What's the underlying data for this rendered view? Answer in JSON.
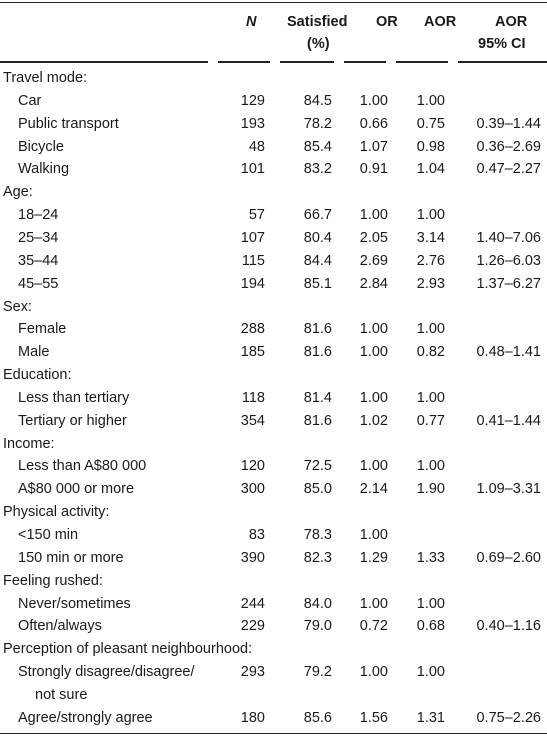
{
  "header": {
    "n": "N",
    "satisfied_line1": "Satisfied",
    "satisfied_line2": "(%)",
    "or": "OR",
    "aor": "AOR",
    "ci_line1": "AOR",
    "ci_line2": "95% CI"
  },
  "sections": [
    {
      "title": "Travel mode:",
      "rows": [
        {
          "label": "Car",
          "n": "129",
          "sat": "84.5",
          "or": "1.00",
          "aor": "1.00",
          "ci": ""
        },
        {
          "label": "Public transport",
          "n": "193",
          "sat": "78.2",
          "or": "0.66",
          "aor": "0.75",
          "ci": "0.39–1.44"
        },
        {
          "label": "Bicycle",
          "n": "48",
          "sat": "85.4",
          "or": "1.07",
          "aor": "0.98",
          "ci": "0.36–2.69"
        },
        {
          "label": "Walking",
          "n": "101",
          "sat": "83.2",
          "or": "0.91",
          "aor": "1.04",
          "ci": "0.47–2.27"
        }
      ]
    },
    {
      "title": "Age:",
      "rows": [
        {
          "label": "18–24",
          "n": "57",
          "sat": "66.7",
          "or": "1.00",
          "aor": "1.00",
          "ci": ""
        },
        {
          "label": "25–34",
          "n": "107",
          "sat": "80.4",
          "or": "2.05",
          "aor": "3.14",
          "ci": "1.40–7.06"
        },
        {
          "label": "35–44",
          "n": "115",
          "sat": "84.4",
          "or": "2.69",
          "aor": "2.76",
          "ci": "1.26–6.03"
        },
        {
          "label": "45–55",
          "n": "194",
          "sat": "85.1",
          "or": "2.84",
          "aor": "2.93",
          "ci": "1.37–6.27"
        }
      ]
    },
    {
      "title": "Sex:",
      "rows": [
        {
          "label": "Female",
          "n": "288",
          "sat": "81.6",
          "or": "1.00",
          "aor": "1.00",
          "ci": ""
        },
        {
          "label": "Male",
          "n": "185",
          "sat": "81.6",
          "or": "1.00",
          "aor": "0.82",
          "ci": "0.48–1.41"
        }
      ]
    },
    {
      "title": "Education:",
      "rows": [
        {
          "label": "Less than tertiary",
          "n": "118",
          "sat": "81.4",
          "or": "1.00",
          "aor": "1.00",
          "ci": ""
        },
        {
          "label": "Tertiary or higher",
          "n": "354",
          "sat": "81.6",
          "or": "1.02",
          "aor": "0.77",
          "ci": "0.41–1.44"
        }
      ]
    },
    {
      "title": "Income:",
      "rows": [
        {
          "label": "Less than A$80 000",
          "n": "120",
          "sat": "72.5",
          "or": "1.00",
          "aor": "1.00",
          "ci": ""
        },
        {
          "label": "A$80 000 or more",
          "n": "300",
          "sat": "85.0",
          "or": "2.14",
          "aor": "1.90",
          "ci": "1.09–3.31"
        }
      ]
    },
    {
      "title": "Physical activity:",
      "rows": [
        {
          "label": "<150 min",
          "n": "83",
          "sat": "78.3",
          "or": "1.00",
          "aor": "",
          "ci": ""
        },
        {
          "label": "150 min or more",
          "n": "390",
          "sat": "82.3",
          "or": "1.29",
          "aor": "1.33",
          "ci": "0.69–2.60"
        }
      ]
    },
    {
      "title": "Feeling rushed:",
      "rows": [
        {
          "label": "Never/sometimes",
          "n": "244",
          "sat": "84.0",
          "or": "1.00",
          "aor": "1.00",
          "ci": ""
        },
        {
          "label": "Often/always",
          "n": "229",
          "sat": "79.0",
          "or": "0.72",
          "aor": "0.68",
          "ci": "0.40–1.16"
        }
      ]
    },
    {
      "title": "Perception of pleasant neighbourhood:",
      "rows": [
        {
          "label": "Strongly disagree/disagree/",
          "label2": "not sure",
          "n": "293",
          "sat": "79.2",
          "or": "1.00",
          "aor": "1.00",
          "ci": ""
        },
        {
          "label": "Agree/strongly agree",
          "n": "180",
          "sat": "85.6",
          "or": "1.56",
          "aor": "1.31",
          "ci": "0.75–2.26"
        }
      ]
    }
  ]
}
